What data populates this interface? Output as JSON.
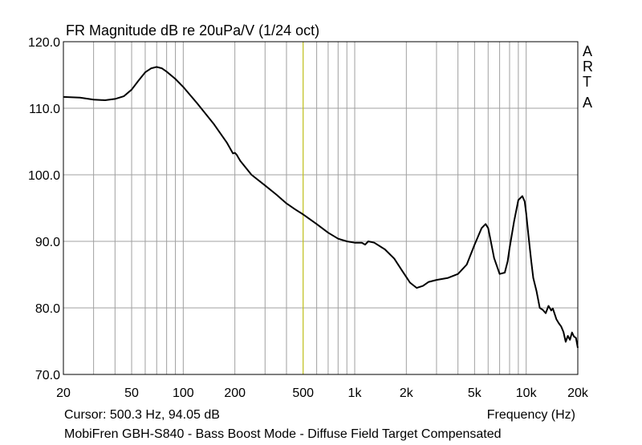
{
  "chart_data": {
    "type": "line",
    "title": "FR Magnitude dB re 20uPa/V (1/24 oct)",
    "xlabel": "Frequency (Hz)",
    "ylabel": "",
    "xscale": "log",
    "xlim": [
      20,
      20000
    ],
    "ylim": [
      70,
      120
    ],
    "grid": true,
    "x_ticks": [
      {
        "value": 20,
        "label": "20"
      },
      {
        "value": 50,
        "label": "50"
      },
      {
        "value": 100,
        "label": "100"
      },
      {
        "value": 200,
        "label": "200"
      },
      {
        "value": 500,
        "label": "500"
      },
      {
        "value": 1000,
        "label": "1k"
      },
      {
        "value": 2000,
        "label": "2k"
      },
      {
        "value": 5000,
        "label": "5k"
      },
      {
        "value": 10000,
        "label": "10k"
      },
      {
        "value": 20000,
        "label": "20k"
      }
    ],
    "y_ticks": [
      {
        "value": 70,
        "label": "70.0"
      },
      {
        "value": 80,
        "label": "80.0"
      },
      {
        "value": 90,
        "label": "90.0"
      },
      {
        "value": 100,
        "label": "100.0"
      },
      {
        "value": 110,
        "label": "110.0"
      },
      {
        "value": 120,
        "label": "120.0"
      }
    ],
    "cursor": {
      "x": 500.3,
      "y": 94.05,
      "color": "#c8c800"
    },
    "cursor_text": "Cursor: 500.3 Hz, 94.05 dB",
    "caption": "MobiFren GBH-S840 - Bass Boost Mode - Diffuse Field Target Compensated",
    "brand_letters": [
      "A",
      "R",
      "T",
      "A"
    ],
    "colors": {
      "background": "#ffffff",
      "grid": "#a0a0a0",
      "curve": "#000000",
      "frame": "#000000"
    },
    "series": [
      {
        "x": [
          20,
          25,
          30,
          35,
          40,
          45,
          50,
          55,
          60,
          65,
          70,
          75,
          80,
          90,
          100,
          120,
          150,
          180,
          195,
          200,
          205,
          215,
          250,
          300,
          350,
          400,
          450,
          500,
          600,
          700,
          800,
          900,
          1000,
          1100,
          1150,
          1200,
          1300,
          1500,
          1700,
          1900,
          2100,
          2300,
          2500,
          2700,
          3000,
          3500,
          4000,
          4500,
          5000,
          5500,
          5800,
          6000,
          6200,
          6500,
          7000,
          7500,
          7800,
          8000,
          8500,
          9000,
          9500,
          9800,
          10000,
          10300,
          10700,
          11000,
          11500,
          12000,
          12500,
          13000,
          13500,
          14000,
          14300,
          14700,
          15000,
          15500,
          16000,
          16500,
          17000,
          17500,
          18000,
          18500,
          19000,
          19500,
          20000
        ],
        "y": [
          111.7,
          111.6,
          111.3,
          111.2,
          111.4,
          111.8,
          112.8,
          114.2,
          115.4,
          116.0,
          116.2,
          116.0,
          115.5,
          114.4,
          113.2,
          110.8,
          107.7,
          104.8,
          103.2,
          103.3,
          103.0,
          102.1,
          100.0,
          98.4,
          97.0,
          95.7,
          94.8,
          94.05,
          92.6,
          91.3,
          90.4,
          90.0,
          89.8,
          89.8,
          89.5,
          90.0,
          89.8,
          88.8,
          87.4,
          85.5,
          83.8,
          83.0,
          83.3,
          83.9,
          84.2,
          84.5,
          85.1,
          86.5,
          89.5,
          92.0,
          92.6,
          92.0,
          90.2,
          87.5,
          85.1,
          85.3,
          87.0,
          89.0,
          93.0,
          96.2,
          96.8,
          96.0,
          94.2,
          91.0,
          87.0,
          84.5,
          82.5,
          80.0,
          79.7,
          79.2,
          80.3,
          79.6,
          79.9,
          79.0,
          78.3,
          77.7,
          77.2,
          76.4,
          74.9,
          75.8,
          75.2,
          76.3,
          75.7,
          75.5,
          74.0
        ]
      }
    ]
  }
}
